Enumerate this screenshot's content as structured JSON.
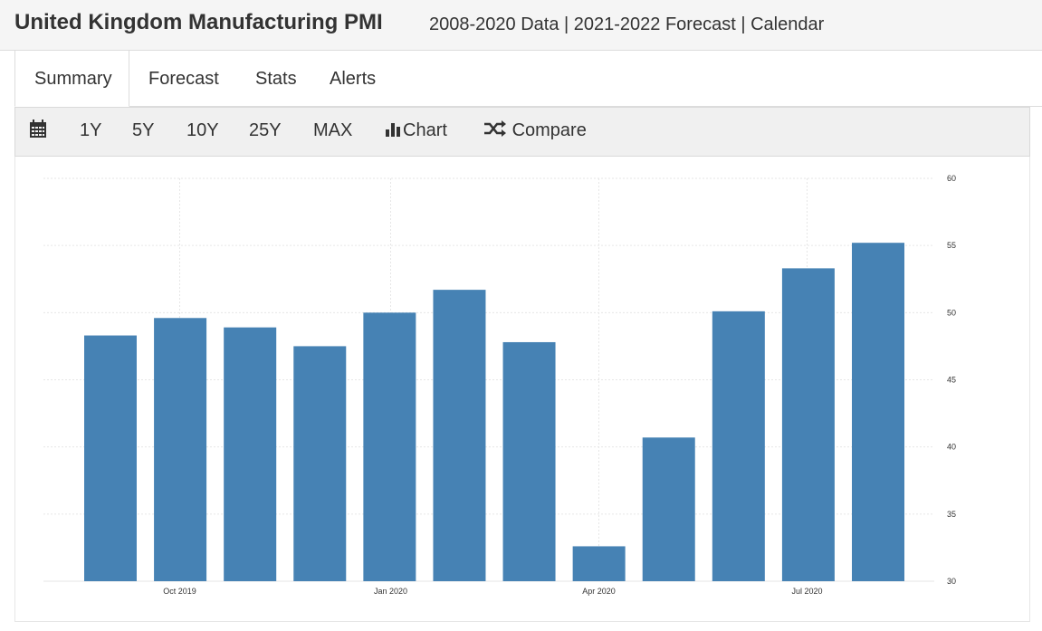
{
  "header": {
    "title": "United Kingdom Manufacturing PMI",
    "subtitle": "2008-2020 Data | 2021-2022 Forecast | Calendar"
  },
  "tabs": [
    {
      "label": "Summary",
      "active": true
    },
    {
      "label": "Forecast"
    },
    {
      "label": "Stats"
    },
    {
      "label": "Alerts"
    }
  ],
  "toolbar": {
    "calendar_icon": "calendar-icon",
    "ranges": [
      "1Y",
      "5Y",
      "10Y",
      "25Y",
      "MAX"
    ],
    "chart_label": "Chart",
    "chart_icon": "bar-chart-icon",
    "compare_label": "Compare",
    "compare_icon": "shuffle-icon"
  },
  "chart_data": {
    "type": "bar",
    "categories": [
      "Sep 2019",
      "Oct 2019",
      "Nov 2019",
      "Dec 2019",
      "Jan 2020",
      "Feb 2020",
      "Mar 2020",
      "Apr 2020",
      "May 2020",
      "Jun 2020",
      "Jul 2020",
      "Aug 2020"
    ],
    "values": [
      48.3,
      49.6,
      48.9,
      47.5,
      50.0,
      51.7,
      47.8,
      32.6,
      40.7,
      50.1,
      53.3,
      55.2
    ],
    "x_tick_labels": [
      "Oct 2019",
      "Jan 2020",
      "Apr 2020",
      "Jul 2020"
    ],
    "y_ticks": [
      30,
      35,
      40,
      45,
      50,
      55,
      60
    ],
    "ylim": [
      30,
      60
    ],
    "bar_color": "#4682b4",
    "grid": true,
    "y_axis_side": "right"
  }
}
